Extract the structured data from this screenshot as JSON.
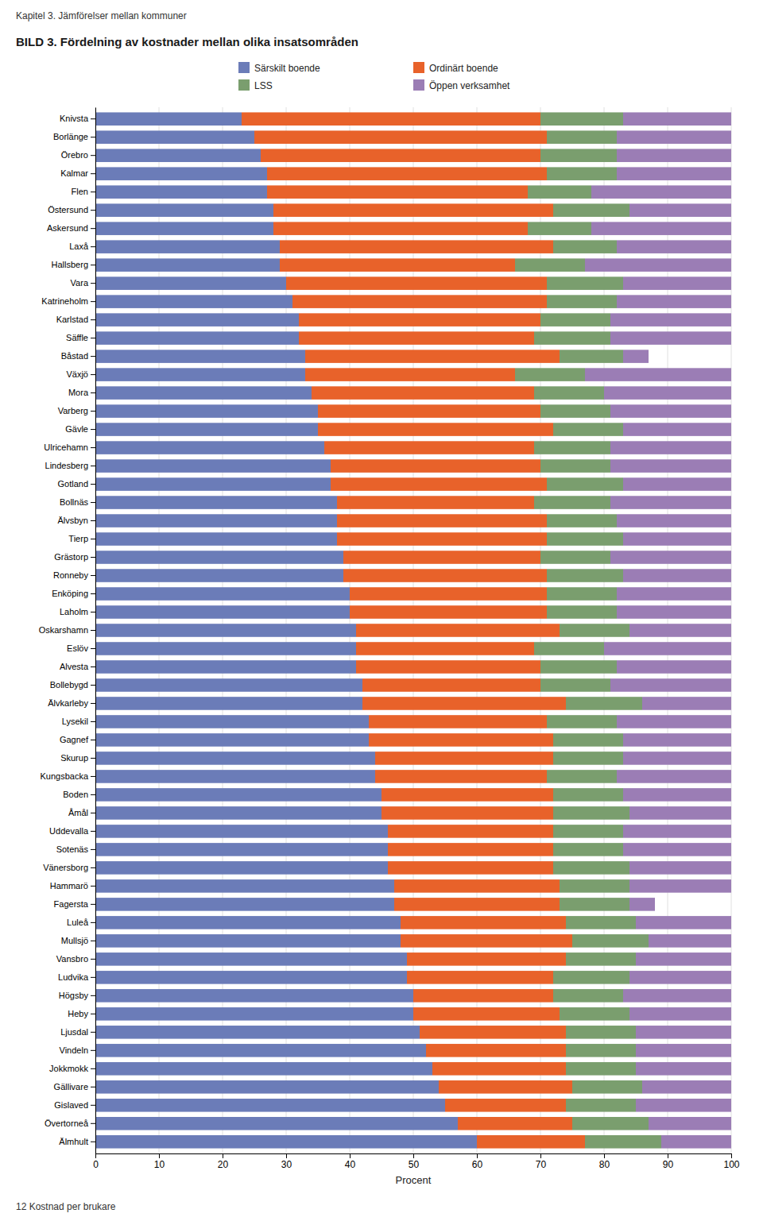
{
  "chart_data": {
    "type": "bar",
    "orientation": "horizontal",
    "stacked": true,
    "title": "BILD 3. Fördelning av kostnader mellan olika insatsområden",
    "annotations": [
      "Kapitel 3. Jämförelser mellan kommuner",
      "12   Kostnad per brukare"
    ],
    "xlabel": "Procent",
    "xlim": [
      0,
      100
    ],
    "xticks": [
      0,
      10,
      20,
      30,
      40,
      50,
      60,
      70,
      80,
      90,
      100
    ],
    "grid": true,
    "legend": "top",
    "categories": [
      "Knivsta",
      "Borlänge",
      "Örebro",
      "Kalmar",
      "Flen",
      "Östersund",
      "Askersund",
      "Laxå",
      "Hallsberg",
      "Vara",
      "Katrineholm",
      "Karlstad",
      "Säffle",
      "Båstad",
      "Växjö",
      "Mora",
      "Varberg",
      "Gävle",
      "Ulricehamn",
      "Lindesberg",
      "Gotland",
      "Bollnäs",
      "Älvsbyn",
      "Tierp",
      "Grästorp",
      "Ronneby",
      "Enköping",
      "Laholm",
      "Oskarshamn",
      "Eslöv",
      "Alvesta",
      "Bollebygd",
      "Älvkarleby",
      "Lysekil",
      "Gagnef",
      "Skurup",
      "Kungsbacka",
      "Boden",
      "Åmål",
      "Uddevalla",
      "Sotenäs",
      "Vänersborg",
      "Hammarö",
      "Fagersta",
      "Luleå",
      "Mullsjö",
      "Vansbro",
      "Ludvika",
      "Högsby",
      "Heby",
      "Ljusdal",
      "Vindeln",
      "Jokkmokk",
      "Gällivare",
      "Gislaved",
      "Övertorneå",
      "Älmhult"
    ],
    "series": [
      {
        "name": "Särskilt boende",
        "color": "#6b7cb8",
        "values": [
          23,
          25,
          26,
          27,
          27,
          28,
          28,
          29,
          29,
          30,
          31,
          32,
          32,
          33,
          33,
          34,
          35,
          35,
          36,
          37,
          37,
          38,
          38,
          38,
          39,
          39,
          40,
          40,
          41,
          41,
          41,
          42,
          42,
          43,
          43,
          44,
          44,
          45,
          45,
          46,
          46,
          46,
          47,
          47,
          48,
          48,
          49,
          49,
          50,
          50,
          51,
          52,
          53,
          54,
          55,
          57,
          60
        ]
      },
      {
        "name": "Ordinärt boende",
        "color": "#e8622a",
        "values": [
          47,
          46,
          44,
          44,
          41,
          44,
          40,
          43,
          37,
          41,
          40,
          38,
          37,
          40,
          33,
          35,
          35,
          37,
          33,
          33,
          34,
          31,
          33,
          33,
          31,
          32,
          31,
          31,
          32,
          28,
          29,
          28,
          32,
          28,
          29,
          28,
          27,
          27,
          27,
          26,
          26,
          26,
          26,
          26,
          26,
          27,
          25,
          23,
          22,
          23,
          23,
          22,
          21,
          21,
          19,
          18,
          17
        ]
      },
      {
        "name": "LSS",
        "color": "#7a9e6e",
        "values": [
          13,
          11,
          12,
          11,
          10,
          12,
          10,
          10,
          11,
          12,
          11,
          11,
          12,
          10,
          11,
          11,
          11,
          11,
          12,
          11,
          12,
          12,
          11,
          12,
          11,
          12,
          11,
          11,
          11,
          11,
          12,
          11,
          12,
          11,
          11,
          11,
          11,
          11,
          12,
          11,
          11,
          12,
          11,
          11,
          11,
          12,
          11,
          12,
          11,
          11,
          11,
          11,
          11,
          11,
          11,
          12,
          12
        ]
      },
      {
        "name": "Öppen verksamhet",
        "color": "#9b7db5",
        "values": [
          17,
          18,
          18,
          18,
          22,
          16,
          22,
          18,
          23,
          17,
          18,
          19,
          19,
          4,
          23,
          20,
          19,
          17,
          19,
          19,
          17,
          19,
          18,
          17,
          19,
          17,
          18,
          18,
          16,
          20,
          18,
          19,
          14,
          18,
          17,
          17,
          18,
          17,
          16,
          17,
          17,
          16,
          16,
          4,
          15,
          13,
          15,
          16,
          17,
          16,
          15,
          15,
          15,
          14,
          15,
          13,
          11
        ]
      }
    ]
  }
}
